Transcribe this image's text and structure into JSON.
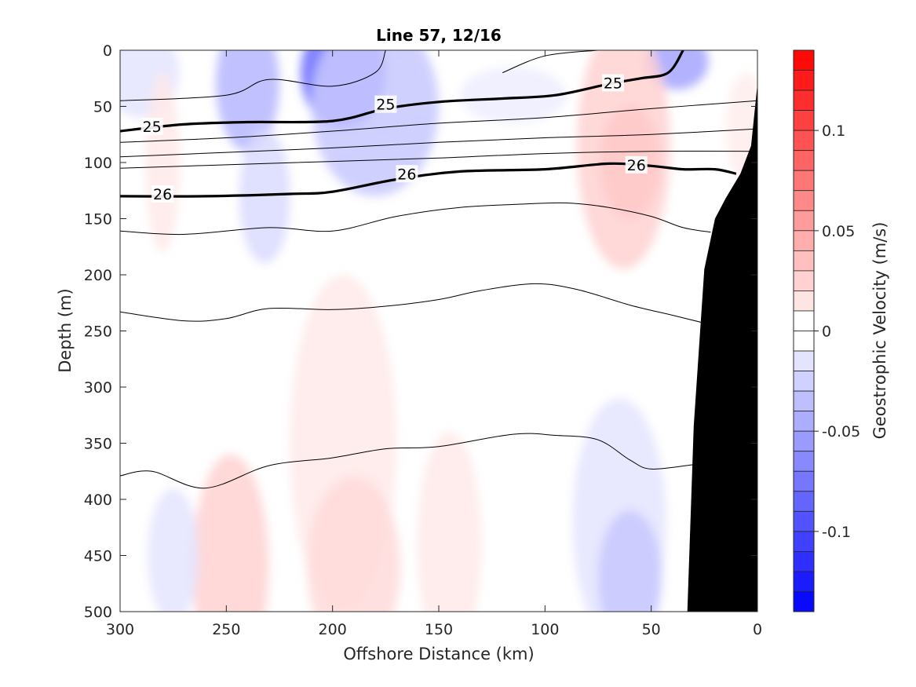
{
  "chart_data": {
    "type": "contour",
    "title": "Line 57, 12/16",
    "xlabel": "Offshore Distance (km)",
    "ylabel": "Depth (m)",
    "colorbar_label": "Geostrophic Velocity (m/s)",
    "x_range": [
      300,
      0
    ],
    "x_reversed": true,
    "y_range": [
      0,
      500
    ],
    "y_reversed": true,
    "x_ticks": [
      300,
      250,
      200,
      150,
      100,
      50,
      0
    ],
    "y_ticks": [
      0,
      50,
      100,
      150,
      200,
      250,
      300,
      350,
      400,
      450,
      500
    ],
    "colorbar_range": [
      -0.14,
      0.14
    ],
    "colorbar_ticks": [
      0.1,
      0.05,
      0,
      -0.05,
      -0.1
    ],
    "colorbar_tick_labels": [
      "0.1",
      "0.05",
      "0",
      "-0.05",
      "-0.1"
    ],
    "colorbar_step": 0.01,
    "colors": {
      "positive": "#ff0000",
      "negative": "#0000ff",
      "zero": "#ffffff",
      "bathymetry": "#000000",
      "contour": "#000000"
    },
    "velocity_blobs": [
      {
        "x": 195,
        "y": 20,
        "rx": 20,
        "ry": 50,
        "v": -0.08
      },
      {
        "x": 180,
        "y": 50,
        "rx": 30,
        "ry": 80,
        "v": -0.03
      },
      {
        "x": 240,
        "y": 30,
        "rx": 15,
        "ry": 60,
        "v": -0.04
      },
      {
        "x": 232,
        "y": 130,
        "rx": 12,
        "ry": 60,
        "v": -0.02
      },
      {
        "x": 290,
        "y": 20,
        "rx": 18,
        "ry": 40,
        "v": -0.015
      },
      {
        "x": 115,
        "y": 40,
        "rx": 25,
        "ry": 25,
        "v": -0.01
      },
      {
        "x": 38,
        "y": 10,
        "rx": 15,
        "ry": 25,
        "v": -0.05
      },
      {
        "x": 63,
        "y": 85,
        "rx": 22,
        "ry": 110,
        "v": 0.025
      },
      {
        "x": 60,
        "y": 100,
        "rx": 14,
        "ry": 50,
        "v": 0.03
      },
      {
        "x": 280,
        "y": 100,
        "rx": 8,
        "ry": 80,
        "v": 0.012
      },
      {
        "x": 5,
        "y": 70,
        "rx": 10,
        "ry": 50,
        "v": 0.01
      },
      {
        "x": 195,
        "y": 350,
        "rx": 25,
        "ry": 150,
        "v": 0.012
      },
      {
        "x": 190,
        "y": 460,
        "rx": 22,
        "ry": 80,
        "v": 0.02
      },
      {
        "x": 248,
        "y": 460,
        "rx": 18,
        "ry": 100,
        "v": 0.025
      },
      {
        "x": 145,
        "y": 440,
        "rx": 15,
        "ry": 100,
        "v": 0.012
      },
      {
        "x": 65,
        "y": 420,
        "rx": 22,
        "ry": 110,
        "v": -0.015
      },
      {
        "x": 60,
        "y": 470,
        "rx": 15,
        "ry": 60,
        "v": -0.03
      },
      {
        "x": 275,
        "y": 450,
        "rx": 12,
        "ry": 60,
        "v": -0.015
      }
    ],
    "isopycnals": [
      {
        "label": "",
        "bold": false,
        "points": [
          [
            300,
            45
          ],
          [
            250,
            40
          ],
          [
            230,
            26
          ],
          [
            200,
            32
          ],
          [
            180,
            20
          ],
          [
            175,
            0
          ]
        ]
      },
      {
        "label": "",
        "bold": false,
        "points": [
          [
            75,
            0
          ],
          [
            100,
            5
          ],
          [
            120,
            20
          ]
        ]
      },
      {
        "label": "25",
        "bold": true,
        "label_at": [
          [
            285,
            68
          ],
          [
            175,
            48
          ],
          [
            68,
            29
          ]
        ],
        "points": [
          [
            300,
            72
          ],
          [
            270,
            66
          ],
          [
            240,
            64
          ],
          [
            200,
            63
          ],
          [
            175,
            52
          ],
          [
            150,
            46
          ],
          [
            120,
            43
          ],
          [
            95,
            40
          ],
          [
            70,
            30
          ],
          [
            55,
            25
          ],
          [
            42,
            20
          ],
          [
            35,
            0
          ]
        ]
      },
      {
        "label": "",
        "bold": false,
        "points": [
          [
            300,
            82
          ],
          [
            250,
            78
          ],
          [
            200,
            72
          ],
          [
            150,
            65
          ],
          [
            100,
            60
          ],
          [
            50,
            52
          ],
          [
            0,
            45
          ]
        ]
      },
      {
        "label": "",
        "bold": false,
        "points": [
          [
            300,
            95
          ],
          [
            250,
            91
          ],
          [
            200,
            87
          ],
          [
            150,
            82
          ],
          [
            100,
            78
          ],
          [
            50,
            75
          ],
          [
            0,
            70
          ]
        ]
      },
      {
        "label": "",
        "bold": false,
        "points": [
          [
            300,
            105
          ],
          [
            250,
            102
          ],
          [
            200,
            99
          ],
          [
            150,
            96
          ],
          [
            100,
            92
          ],
          [
            50,
            90
          ],
          [
            0,
            90
          ]
        ]
      },
      {
        "label": "26",
        "bold": true,
        "label_at": [
          [
            280,
            128
          ],
          [
            165,
            110
          ],
          [
            57,
            102
          ]
        ],
        "points": [
          [
            300,
            130
          ],
          [
            260,
            130
          ],
          [
            220,
            128
          ],
          [
            200,
            126
          ],
          [
            170,
            115
          ],
          [
            140,
            108
          ],
          [
            100,
            106
          ],
          [
            70,
            101
          ],
          [
            50,
            103
          ],
          [
            35,
            106
          ],
          [
            20,
            106
          ],
          [
            10,
            110
          ]
        ]
      },
      {
        "label": "",
        "bold": false,
        "points": [
          [
            300,
            161
          ],
          [
            270,
            164
          ],
          [
            230,
            158
          ],
          [
            200,
            161
          ],
          [
            170,
            148
          ],
          [
            140,
            140
          ],
          [
            110,
            137
          ],
          [
            90,
            136
          ],
          [
            70,
            140
          ],
          [
            50,
            148
          ],
          [
            35,
            158
          ],
          [
            22,
            162
          ]
        ]
      },
      {
        "label": "",
        "bold": false,
        "points": [
          [
            300,
            233
          ],
          [
            270,
            241
          ],
          [
            250,
            239
          ],
          [
            230,
            230
          ],
          [
            200,
            231
          ],
          [
            175,
            228
          ],
          [
            150,
            222
          ],
          [
            130,
            214
          ],
          [
            105,
            208
          ],
          [
            85,
            213
          ],
          [
            60,
            227
          ],
          [
            40,
            236
          ],
          [
            25,
            243
          ]
        ]
      },
      {
        "label": "",
        "bold": false,
        "points": [
          [
            300,
            379
          ],
          [
            285,
            375
          ],
          [
            260,
            390
          ],
          [
            230,
            370
          ],
          [
            200,
            363
          ],
          [
            175,
            355
          ],
          [
            150,
            353
          ],
          [
            115,
            342
          ],
          [
            95,
            343
          ],
          [
            75,
            347
          ],
          [
            60,
            365
          ],
          [
            50,
            373
          ],
          [
            30,
            369
          ]
        ]
      }
    ],
    "bathymetry": [
      [
        33,
        500
      ],
      [
        30,
        335
      ],
      [
        25,
        195
      ],
      [
        20,
        150
      ],
      [
        15,
        132
      ],
      [
        8,
        110
      ],
      [
        3,
        85
      ],
      [
        0,
        30
      ],
      [
        0,
        500
      ]
    ]
  }
}
